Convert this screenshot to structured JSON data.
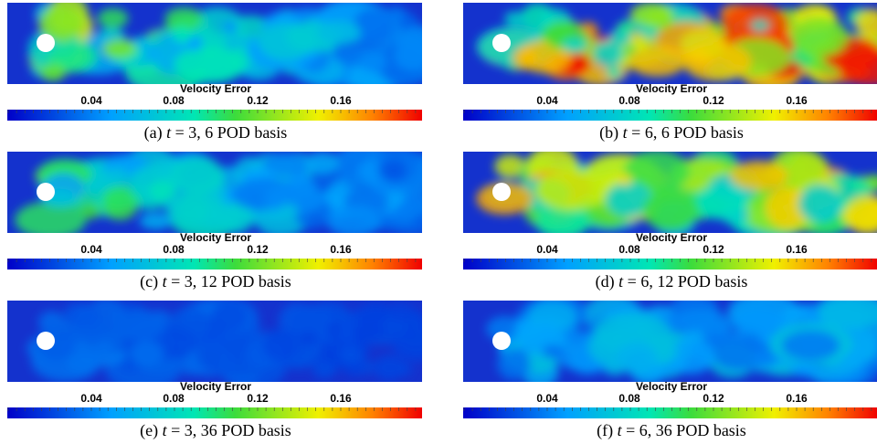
{
  "colorbar": {
    "title": "Velocity Error",
    "ticks": [
      "0.04",
      "0.08",
      "0.12",
      "0.16"
    ]
  },
  "panels": [
    {
      "label": "(a)",
      "variable": "t",
      "text": "= 3, 6 POD basis"
    },
    {
      "label": "(b)",
      "variable": "t",
      "text": "= 6, 6 POD basis"
    },
    {
      "label": "(c)",
      "variable": "t",
      "text": "= 3, 12 POD basis"
    },
    {
      "label": "(d)",
      "variable": "t",
      "text": "= 6, 12 POD basis"
    },
    {
      "label": "(e)",
      "variable": "t",
      "text": "= 3, 36 POD basis"
    },
    {
      "label": "(f)",
      "variable": "t",
      "text": "= 6, 36 POD basis"
    }
  ]
}
